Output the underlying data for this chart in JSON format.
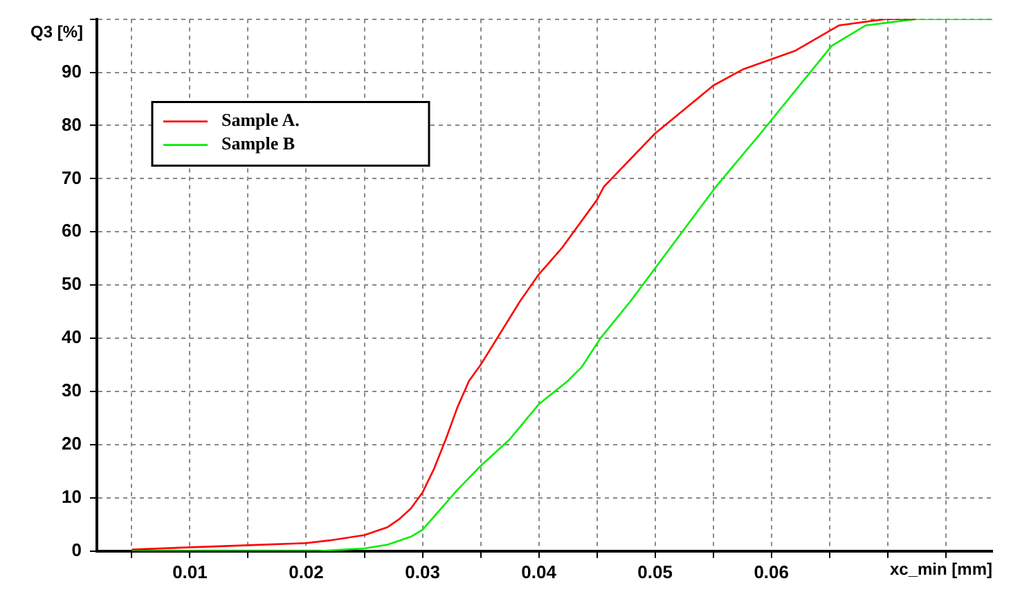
{
  "chart_data": {
    "type": "line",
    "xlabel": "xc_min [mm]",
    "ylabel": "Q3 [%]",
    "xlim": [
      0.002,
      0.079
    ],
    "ylim": [
      0,
      100
    ],
    "xticks": [
      {
        "value": 0.005,
        "label": null
      },
      0.01,
      {
        "value": 0.015,
        "label": null
      },
      0.02,
      {
        "value": 0.025,
        "label": null
      },
      0.03,
      {
        "value": 0.035,
        "label": null
      },
      0.04,
      {
        "value": 0.045,
        "label": null
      },
      0.05,
      {
        "value": 0.055,
        "label": null
      },
      0.06,
      {
        "value": 0.065,
        "label": null
      },
      {
        "value": 0.07,
        "label": null
      },
      {
        "value": 0.075,
        "label": null
      }
    ],
    "yticks": [
      0,
      10,
      20,
      30,
      40,
      50,
      60,
      70,
      80,
      90,
      {
        "value": 100,
        "label": null
      }
    ],
    "grid": true,
    "legend": "top left",
    "marker": "none",
    "line_style": "solid",
    "series": [
      {
        "name": "Sample A.",
        "color": "#ff0000",
        "x": [
          0.005,
          0.01,
          0.015,
          0.02,
          0.022,
          0.025,
          0.027,
          0.028,
          0.029,
          0.03,
          0.031,
          0.032,
          0.033,
          0.034,
          0.035,
          0.0384,
          0.04,
          0.042,
          0.045,
          0.0456,
          0.05,
          0.055,
          0.0576,
          0.062,
          0.0658,
          0.0698,
          0.0724
        ],
        "values": [
          0.3,
          0.7,
          1.1,
          1.5,
          2,
          3,
          4.5,
          6,
          8,
          11,
          15.5,
          21,
          27,
          32,
          35,
          47,
          52,
          57,
          66,
          68.5,
          78.5,
          87.5,
          90.6,
          94,
          98.8,
          100,
          100
        ]
      },
      {
        "name": "Sample B",
        "color": "#00ee00",
        "x": [
          0.005,
          0.021,
          0.025,
          0.027,
          0.029,
          0.03,
          0.031,
          0.033,
          0.035,
          0.0375,
          0.04,
          0.0425,
          0.0437,
          0.0453,
          0.0479,
          0.0552,
          0.0591,
          0.0652,
          0.0681,
          0.0724,
          0.079
        ],
        "values": [
          0,
          0,
          0.5,
          1.2,
          2.7,
          4,
          6.5,
          11.5,
          16,
          21,
          27.6,
          32,
          34.6,
          40,
          47,
          68.4,
          78.6,
          95,
          98.8,
          100,
          100
        ]
      }
    ]
  }
}
